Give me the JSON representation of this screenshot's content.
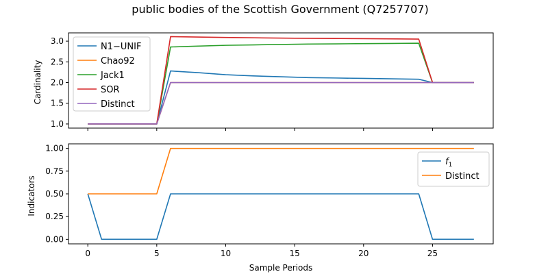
{
  "figure": {
    "title": "public bodies of the Scottish Government (Q7257707)"
  },
  "chart_data": [
    {
      "type": "line",
      "ylabel": "Cardinality",
      "xlabel": "",
      "xlim": [
        -1.4,
        29.4
      ],
      "ylim": [
        0.9,
        3.2
      ],
      "xticks": [
        0,
        5,
        10,
        15,
        20,
        25
      ],
      "yticks": [
        1.0,
        1.5,
        2.0,
        2.5,
        3.0
      ],
      "ytick_labels": [
        "1.0",
        "1.5",
        "2.0",
        "2.5",
        "3.0"
      ],
      "show_xtick_labels": false,
      "legend_loc": "upper left",
      "series": [
        {
          "name": "N1−UNIF",
          "color": "#1f77b4",
          "x": [
            0,
            5,
            6,
            8,
            10,
            12,
            14,
            16,
            18,
            20,
            22,
            24,
            25,
            28
          ],
          "y": [
            1.0,
            1.0,
            2.28,
            2.24,
            2.19,
            2.16,
            2.14,
            2.12,
            2.11,
            2.1,
            2.09,
            2.08,
            2.0,
            2.0
          ]
        },
        {
          "name": "Chao92",
          "color": "#ff7f0e",
          "x": [
            0,
            5,
            6,
            24,
            25,
            28
          ],
          "y": [
            1.0,
            1.0,
            2.0,
            2.0,
            2.0,
            2.0
          ]
        },
        {
          "name": "Jack1",
          "color": "#2ca02c",
          "x": [
            0,
            5,
            6,
            8,
            10,
            12,
            14,
            16,
            18,
            20,
            22,
            24,
            25,
            28
          ],
          "y": [
            1.0,
            1.0,
            2.86,
            2.88,
            2.9,
            2.91,
            2.92,
            2.93,
            2.935,
            2.94,
            2.945,
            2.95,
            2.0,
            2.0
          ]
        },
        {
          "name": "SOR",
          "color": "#d62728",
          "x": [
            0,
            5,
            6,
            10,
            15,
            20,
            24,
            25,
            28
          ],
          "y": [
            1.0,
            1.0,
            3.11,
            3.09,
            3.07,
            3.06,
            3.05,
            2.0,
            2.0
          ]
        },
        {
          "name": "Distinct",
          "color": "#9467bd",
          "x": [
            0,
            5,
            6,
            24,
            25,
            28
          ],
          "y": [
            1.0,
            1.0,
            2.0,
            2.0,
            2.0,
            2.0
          ]
        }
      ]
    },
    {
      "type": "line",
      "ylabel": "Indicators",
      "xlabel": "Sample Periods",
      "xlim": [
        -1.4,
        29.4
      ],
      "ylim": [
        -0.05,
        1.05
      ],
      "xticks": [
        0,
        5,
        10,
        15,
        20,
        25
      ],
      "xtick_labels": [
        "0",
        "5",
        "10",
        "15",
        "20",
        "25"
      ],
      "yticks": [
        0.0,
        0.25,
        0.5,
        0.75,
        1.0
      ],
      "ytick_labels": [
        "0.00",
        "0.25",
        "0.50",
        "0.75",
        "1.00"
      ],
      "show_xtick_labels": true,
      "legend_loc": "center right",
      "series": [
        {
          "name": "f",
          "name_subscript": "1",
          "color": "#1f77b4",
          "x": [
            0,
            1,
            5,
            6,
            24,
            25,
            28
          ],
          "y": [
            0.5,
            0.0,
            0.0,
            0.5,
            0.5,
            0.0,
            0.0
          ]
        },
        {
          "name": "Distinct",
          "color": "#ff7f0e",
          "x": [
            0,
            5,
            6,
            28
          ],
          "y": [
            0.5,
            0.5,
            1.0,
            1.0
          ]
        }
      ]
    }
  ]
}
